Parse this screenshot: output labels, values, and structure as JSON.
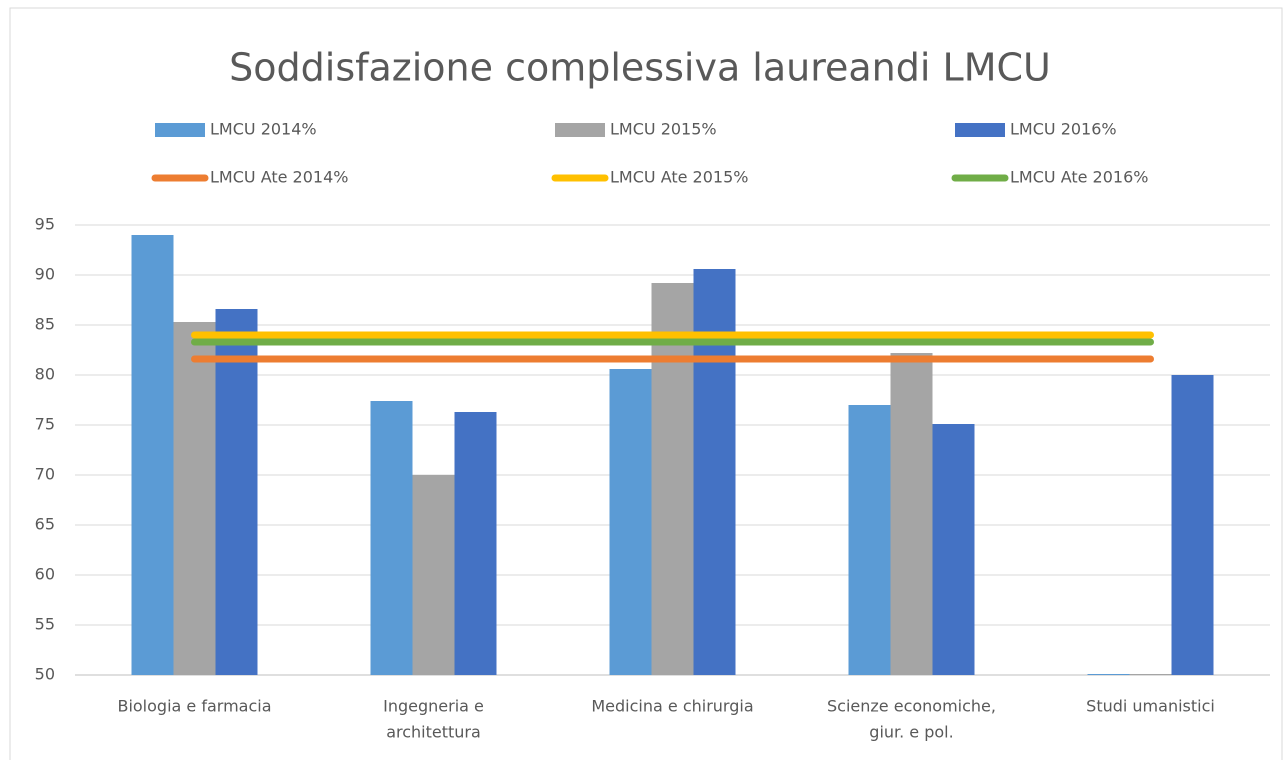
{
  "chart_data": {
    "type": "bar",
    "title": "Soddisfazione complessiva laureandi LMCU",
    "categories": [
      [
        "Biologia e farmacia"
      ],
      [
        "Ingegneria e",
        "architettura"
      ],
      [
        "Medicina e chirurgia"
      ],
      [
        "Scienze economiche,",
        "giur. e pol."
      ],
      [
        "Studi umanistici"
      ]
    ],
    "series": [
      {
        "name": "LMCU 2014%",
        "color": "#5b9bd5",
        "type": "bar",
        "values": [
          94,
          77.4,
          80.6,
          77,
          50
        ]
      },
      {
        "name": "LMCU 2015%",
        "color": "#a5a5a5",
        "type": "bar",
        "values": [
          85.3,
          70,
          89.2,
          82.2,
          50
        ]
      },
      {
        "name": "LMCU 2016%",
        "color": "#4472c4",
        "type": "bar",
        "values": [
          86.6,
          76.3,
          90.6,
          75.1,
          80
        ]
      },
      {
        "name": "LMCU Ate 2014%",
        "color": "#ed7d31",
        "type": "line",
        "values": [
          81.6,
          81.6,
          81.6,
          81.6,
          81.6
        ]
      },
      {
        "name": "LMCU Ate 2015%",
        "color": "#ffc000",
        "type": "line",
        "values": [
          84,
          84,
          84,
          84,
          84
        ]
      },
      {
        "name": "LMCU Ate 2016%",
        "color": "#70ad47",
        "type": "line",
        "values": [
          83.3,
          83.3,
          83.3,
          83.3,
          83.3
        ]
      }
    ],
    "ylim": [
      50,
      95
    ],
    "yticks": [
      50,
      55,
      60,
      65,
      70,
      75,
      80,
      85,
      90,
      95
    ],
    "grid": true
  }
}
